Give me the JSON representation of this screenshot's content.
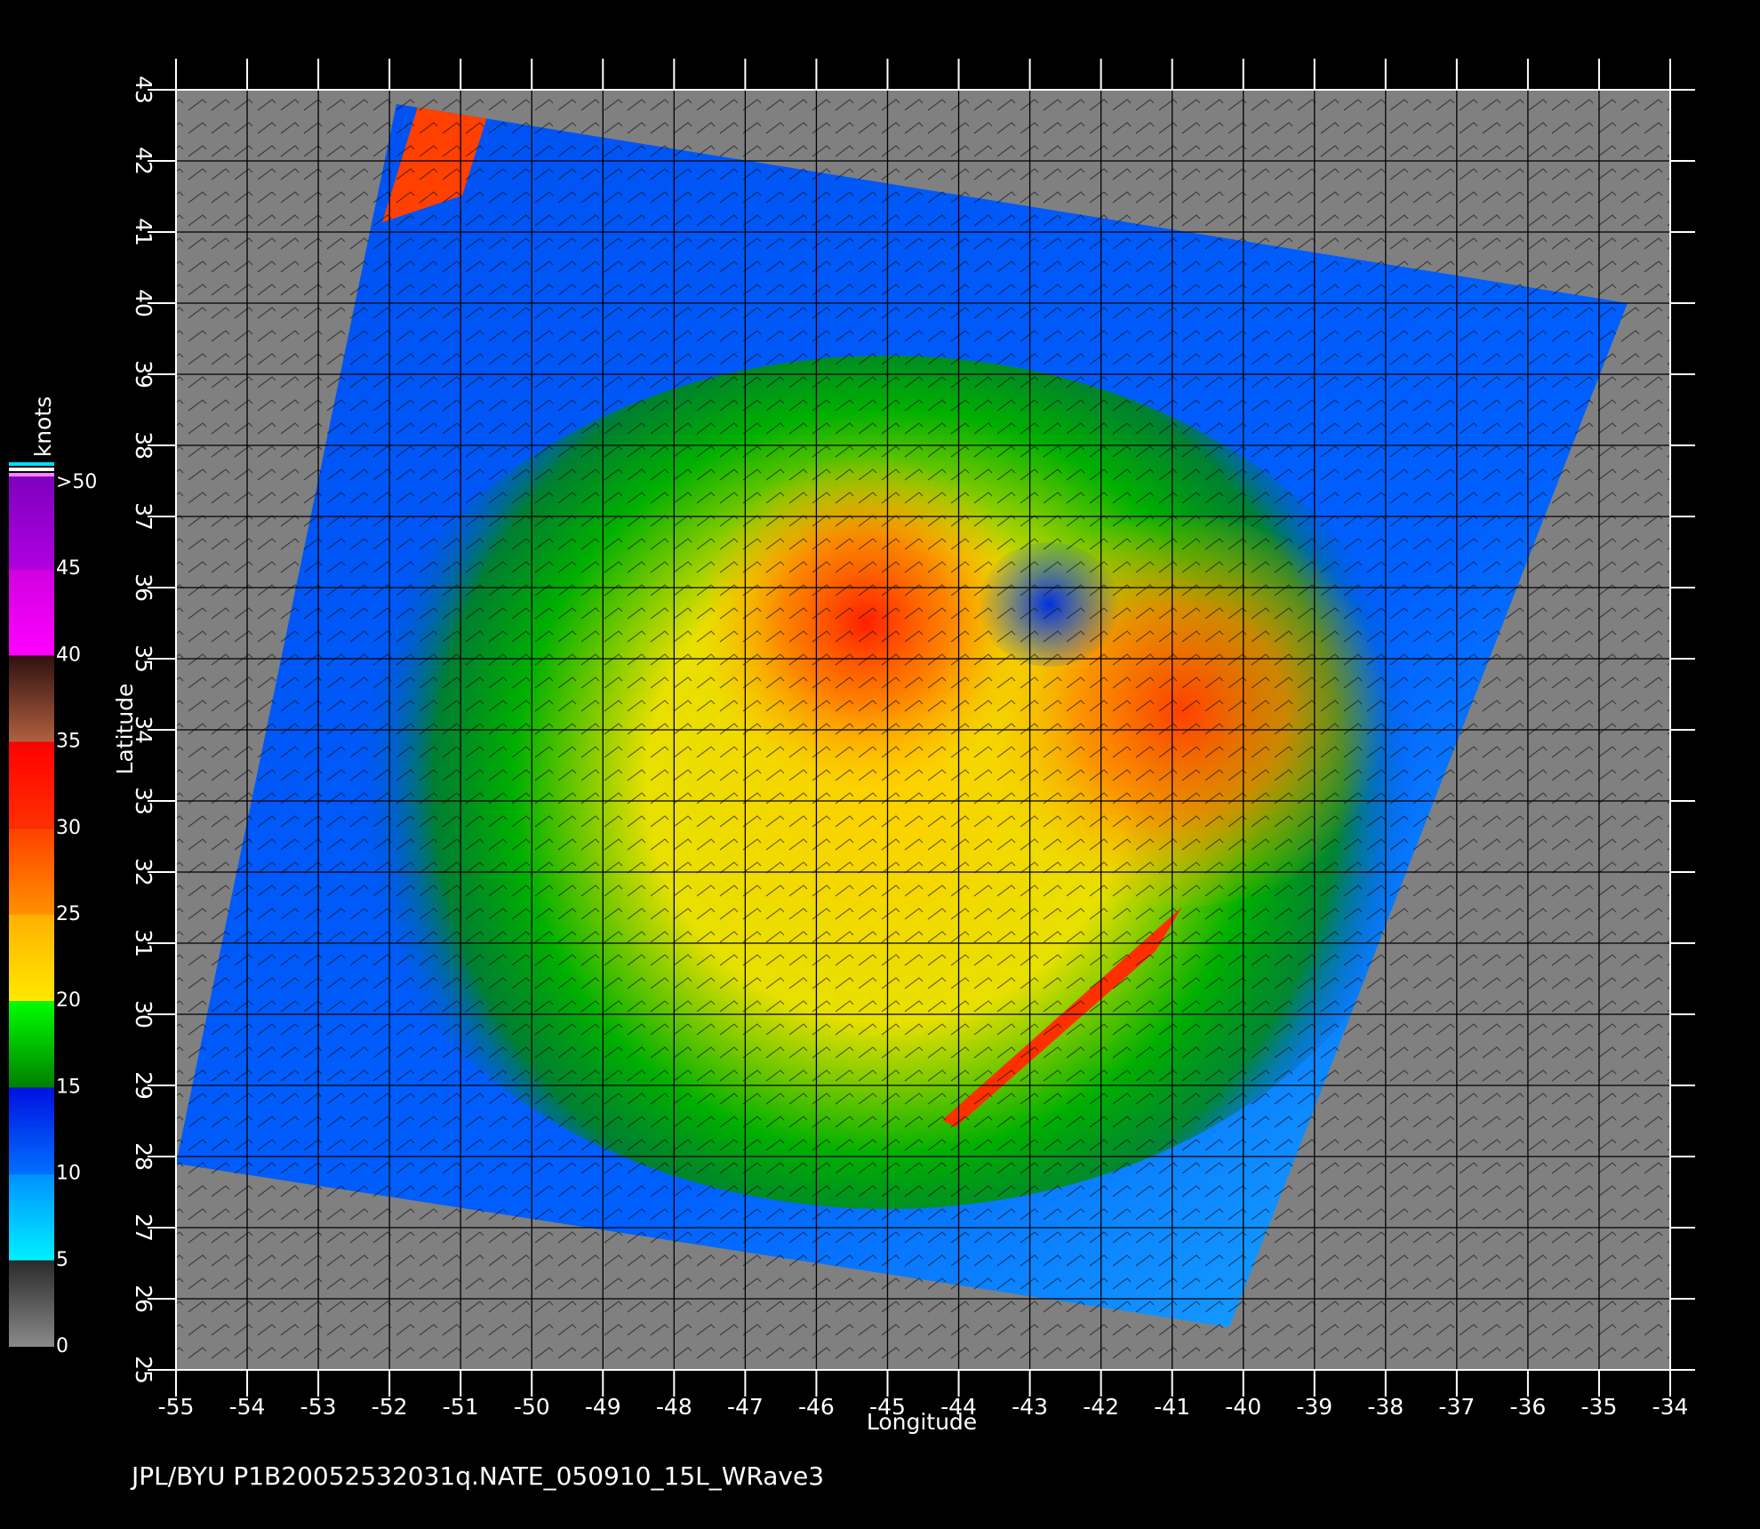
{
  "chart_data": {
    "type": "map",
    "xlabel": "Longitude",
    "ylabel": "Latitude",
    "xlim": [
      -55,
      -34
    ],
    "ylim": [
      25,
      43
    ],
    "xticks": [
      -55,
      -54,
      -53,
      -52,
      -51,
      -50,
      -49,
      -48,
      -47,
      -46,
      -45,
      -44,
      -43,
      -42,
      -41,
      -40,
      -39,
      -38,
      -37,
      -36,
      -35,
      -34
    ],
    "yticks": [
      25,
      26,
      27,
      28,
      29,
      30,
      31,
      32,
      33,
      34,
      35,
      36,
      37,
      38,
      39,
      40,
      41,
      42,
      43
    ],
    "grid": true,
    "colorbar": {
      "title": "knots",
      "lim": [
        0,
        50
      ],
      "ticks": [
        0,
        5,
        10,
        15,
        20,
        25,
        30,
        35,
        40,
        45,
        {
          "value": 50,
          "label": ">50"
        }
      ],
      "colors": [
        [
          "#8a8a8a",
          "#2a2a2a"
        ],
        [
          "#00f0ff",
          "#0090ff"
        ],
        [
          "#0070ff",
          "#0010e0"
        ],
        [
          "#008000",
          "#00ff00"
        ],
        [
          "#ffe800",
          "#ffb000"
        ],
        [
          "#ff9000",
          "#ff4000"
        ],
        [
          "#ff3000",
          "#ff0000"
        ],
        [
          "#b06040",
          "#301010"
        ],
        [
          "#ff00ff",
          "#d000e0"
        ],
        [
          "#b000e0",
          "#8000c0"
        ]
      ]
    },
    "footer": "JPL/BYU  P1B20052532031q.NATE_050910_15L_WRave3"
  }
}
